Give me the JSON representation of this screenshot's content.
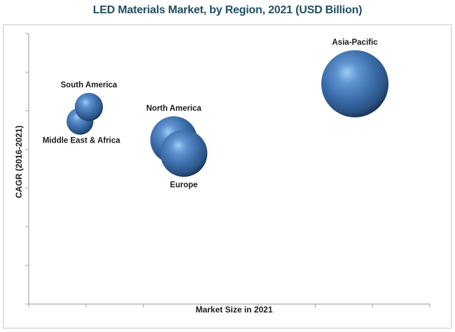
{
  "chart_data": {
    "type": "bubble",
    "title": "LED Materials Market, by Region, 2021 (USD Billion)",
    "xlabel": "Market Size in 2021",
    "ylabel": "CAGR (2016-2021)",
    "x_tick_labels": [],
    "y_tick_labels": [],
    "x_tick_count": 8,
    "y_tick_count": 8,
    "xlim": [
      0,
      6.8
    ],
    "ylim": [
      0,
      7
    ],
    "grid": false,
    "legend": "none",
    "units_note": "Axes unlabeled; positions given in tick-interval units",
    "series": [
      {
        "name": "Middle East & Africa",
        "x": 0.87,
        "y": 4.73,
        "size": 0.4,
        "label_position": "below-left"
      },
      {
        "name": "South America",
        "x": 1.02,
        "y": 5.1,
        "size": 0.42,
        "label_position": "above"
      },
      {
        "name": "North America",
        "x": 2.46,
        "y": 4.25,
        "size": 0.7,
        "label_position": "above"
      },
      {
        "name": "Europe",
        "x": 2.63,
        "y": 3.9,
        "size": 0.7,
        "label_position": "below"
      },
      {
        "name": "Asia-Pacific",
        "x": 5.53,
        "y": 5.7,
        "size": 1.0,
        "label_position": "above"
      }
    ]
  },
  "colors": {
    "title": "#1f4e63",
    "bubble_base": "#3f72b0",
    "bubble_highlight": "#8fc2f2",
    "bubble_shadow": "#16304f",
    "axis": "#a6a6a6",
    "frame": "#c8c8c8"
  }
}
